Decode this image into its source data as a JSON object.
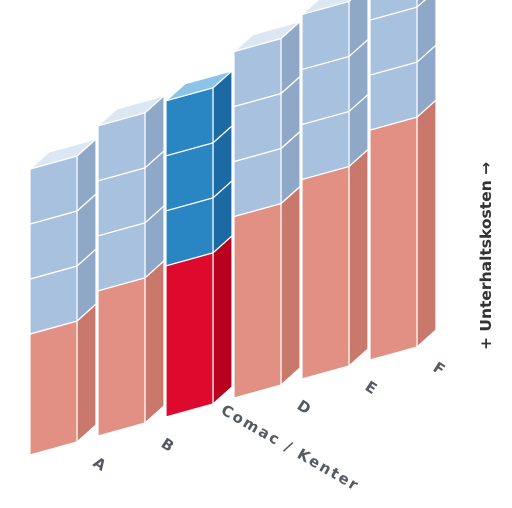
{
  "chart_data": {
    "type": "bar",
    "title": "",
    "xlabel": "",
    "ylabel": "+ Unterhaltskosten →",
    "categories": [
      "A",
      "B",
      "Comac / Kenter",
      "D",
      "E",
      "F"
    ],
    "highlight_category": "Comac / Kenter",
    "series": [
      {
        "values": [
          2.0,
          2.4,
          2.5,
          3.0,
          3.3,
          3.8
        ]
      },
      {
        "values": [
          3,
          3,
          3,
          3,
          3,
          3
        ]
      }
    ],
    "colors": {
      "lower": {
        "front": "#e29084",
        "side": "#c9786c",
        "top": "#f0b4aa"
      },
      "upper": {
        "front": "#a8c1df",
        "side": "#8fa8c8",
        "top": "#dce7f4"
      },
      "lower_highlight": {
        "front": "#dd0a2e",
        "side": "#b8001f",
        "top": "#f07080"
      },
      "upper_highlight": {
        "front": "#2a86c3",
        "side": "#1b6aa3",
        "top": "#8cc4e8"
      }
    }
  }
}
